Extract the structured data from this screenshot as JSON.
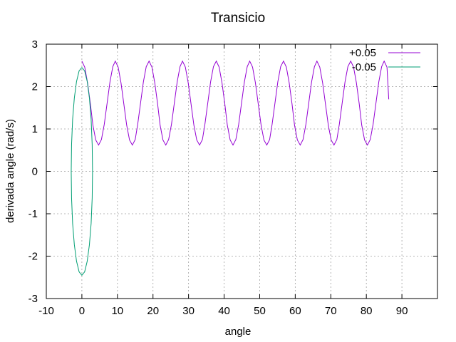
{
  "chart_data": {
    "type": "line",
    "title": "Transicio",
    "xlabel": "angle",
    "ylabel": "derivada angle (rad/s)",
    "xlim": [
      -10,
      100
    ],
    "ylim": [
      -3,
      3
    ],
    "xticks": [
      "-10",
      "0",
      "10",
      "20",
      "30",
      "40",
      "50",
      "60",
      "70",
      "80",
      "90"
    ],
    "yticks": [
      "3",
      "2",
      "1",
      "0",
      "-1",
      "-2",
      "-3"
    ],
    "grid": true,
    "legend_position": "top-right",
    "series": [
      {
        "name": "+0.05",
        "color": "#9400d3",
        "x": [
          0,
          0.8,
          1.6,
          2.4,
          3.1,
          3.9,
          4.7,
          5.5,
          6.3,
          7.1,
          7.9,
          8.7,
          9.4,
          10.2,
          11.0,
          11.8,
          12.6,
          13.4,
          14.2,
          15.0,
          15.7,
          16.5,
          17.3,
          18.1,
          18.9,
          19.7,
          20.5,
          21.3,
          22.0,
          22.8,
          23.6,
          24.4,
          25.2,
          26.0,
          26.8,
          27.6,
          28.3,
          29.1,
          29.9,
          30.7,
          31.5,
          32.3,
          33.1,
          33.9,
          34.6,
          35.4,
          36.2,
          37.0,
          37.8,
          38.6,
          39.4,
          40.2,
          40.9,
          41.7,
          42.5,
          43.3,
          44.1,
          44.9,
          45.7,
          46.5,
          47.2,
          48.0,
          48.8,
          49.6,
          50.4,
          51.2,
          52.0,
          52.8,
          53.5,
          54.3,
          55.1,
          55.9,
          56.7,
          57.5,
          58.3,
          59.1,
          59.8,
          60.6,
          61.4,
          62.2,
          63.0,
          63.8,
          64.6,
          65.4,
          66.1,
          66.9,
          67.7,
          68.5,
          69.3,
          70.1,
          70.9,
          71.7,
          72.4,
          73.2,
          74.0,
          74.8,
          75.6,
          76.4,
          77.2,
          78.0,
          78.7,
          79.5,
          80.3,
          81.1,
          81.9,
          82.7,
          83.5,
          84.3,
          85.0,
          85.8,
          86.3
        ],
        "y": [
          2.6,
          2.46,
          2.09,
          1.59,
          1.09,
          0.74,
          0.62,
          0.75,
          1.11,
          1.61,
          2.11,
          2.47,
          2.6,
          2.46,
          2.09,
          1.59,
          1.09,
          0.74,
          0.62,
          0.75,
          1.11,
          1.61,
          2.11,
          2.47,
          2.6,
          2.46,
          2.09,
          1.59,
          1.09,
          0.74,
          0.62,
          0.75,
          1.11,
          1.61,
          2.11,
          2.47,
          2.6,
          2.46,
          2.09,
          1.59,
          1.09,
          0.74,
          0.62,
          0.75,
          1.11,
          1.61,
          2.11,
          2.47,
          2.6,
          2.46,
          2.09,
          1.59,
          1.09,
          0.74,
          0.62,
          0.75,
          1.11,
          1.61,
          2.11,
          2.47,
          2.6,
          2.46,
          2.09,
          1.59,
          1.09,
          0.74,
          0.62,
          0.75,
          1.11,
          1.61,
          2.11,
          2.47,
          2.6,
          2.46,
          2.09,
          1.59,
          1.09,
          0.74,
          0.62,
          0.75,
          1.11,
          1.61,
          2.11,
          2.47,
          2.6,
          2.46,
          2.09,
          1.59,
          1.09,
          0.74,
          0.62,
          0.75,
          1.11,
          1.61,
          2.11,
          2.47,
          2.6,
          2.46,
          2.09,
          1.59,
          1.09,
          0.74,
          0.62,
          0.75,
          1.11,
          1.61,
          2.11,
          2.47,
          2.6,
          2.46,
          1.7
        ]
      },
      {
        "name": "-0.05",
        "color": "#009e73",
        "x": [
          0,
          0.78,
          1.5,
          2.12,
          2.6,
          2.9,
          3.0,
          2.9,
          2.6,
          2.12,
          1.5,
          0.78,
          0,
          -0.78,
          -1.5,
          -2.12,
          -2.6,
          -2.9,
          -3.0,
          -2.9,
          -2.6,
          -2.12,
          -1.5,
          -0.78,
          0
        ],
        "y": [
          2.45,
          2.37,
          2.12,
          1.73,
          1.23,
          0.63,
          0,
          -0.63,
          -1.23,
          -1.73,
          -2.12,
          -2.37,
          -2.45,
          -2.37,
          -2.12,
          -1.73,
          -1.23,
          -0.63,
          0,
          0.63,
          1.23,
          1.73,
          2.12,
          2.37,
          2.45
        ]
      }
    ]
  }
}
